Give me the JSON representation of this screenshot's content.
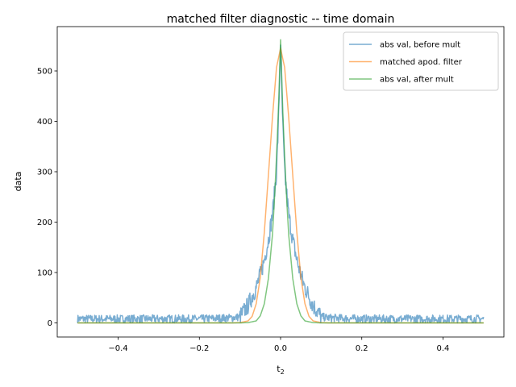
{
  "chart_data": {
    "type": "line",
    "title": "matched filter diagnostic -- time domain",
    "xlabel": "t",
    "xlabel_subscript": "2",
    "ylabel": "data",
    "xlim": [
      -0.55,
      0.55
    ],
    "ylim": [
      -28,
      588
    ],
    "xticks": [
      -0.4,
      -0.2,
      0.0,
      0.2,
      0.4
    ],
    "xtick_labels": [
      "−0.4",
      "−0.2",
      "0.0",
      "0.2",
      "0.4"
    ],
    "yticks": [
      0,
      100,
      200,
      300,
      400,
      500
    ],
    "ytick_labels": [
      "0",
      "100",
      "200",
      "300",
      "400",
      "500"
    ],
    "grid": false,
    "legend_position": "top-right",
    "series": [
      {
        "name": "abs val, before mult",
        "color": "#1f77b4",
        "noisy": true,
        "x": [
          -0.5,
          -0.4,
          -0.3,
          -0.2,
          -0.12,
          -0.1,
          -0.08,
          -0.06,
          -0.05,
          -0.04,
          -0.03,
          -0.02,
          -0.01,
          -0.005,
          0.0,
          0.005,
          0.01,
          0.02,
          0.03,
          0.04,
          0.05,
          0.06,
          0.08,
          0.1,
          0.12,
          0.2,
          0.3,
          0.4,
          0.5
        ],
        "values": [
          8,
          8,
          8,
          8,
          10,
          12,
          35,
          70,
          95,
          125,
          165,
          215,
          300,
          400,
          560,
          400,
          300,
          215,
          165,
          125,
          95,
          70,
          35,
          12,
          10,
          8,
          8,
          8,
          8
        ]
      },
      {
        "name": "matched apod. filter",
        "color": "#ff7f0e",
        "noisy": false,
        "x": [
          -0.5,
          -0.12,
          -0.1,
          -0.08,
          -0.07,
          -0.06,
          -0.05,
          -0.04,
          -0.03,
          -0.02,
          -0.01,
          0.0,
          0.01,
          0.02,
          0.03,
          0.04,
          0.05,
          0.06,
          0.07,
          0.08,
          0.1,
          0.12,
          0.5
        ],
        "values": [
          0,
          0,
          0.5,
          4,
          13,
          38,
          90,
          180,
          293,
          408,
          507,
          545,
          507,
          408,
          293,
          180,
          90,
          38,
          13,
          4,
          0.5,
          0,
          0
        ]
      },
      {
        "name": "abs val, after mult",
        "color": "#2ca02c",
        "noisy": false,
        "x": [
          -0.5,
          -0.1,
          -0.08,
          -0.06,
          -0.05,
          -0.04,
          -0.03,
          -0.02,
          -0.015,
          -0.01,
          -0.005,
          0.0,
          0.005,
          0.01,
          0.015,
          0.02,
          0.03,
          0.04,
          0.05,
          0.06,
          0.08,
          0.1,
          0.5
        ],
        "values": [
          0,
          0,
          0.5,
          4,
          14,
          38,
          88,
          175,
          245,
          330,
          430,
          562,
          430,
          330,
          245,
          175,
          88,
          38,
          14,
          4,
          0.5,
          0,
          0
        ]
      }
    ]
  }
}
